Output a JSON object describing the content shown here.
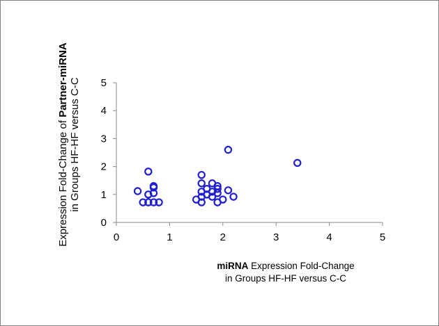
{
  "chart_data": {
    "type": "scatter",
    "xlabel": {
      "line1_bold": "miRNA",
      "line1_rest": " Expression Fold-Change",
      "line2": "in Groups HF-HF versus C-C"
    },
    "ylabel": {
      "line1_plain": "Expression Fold-Change of ",
      "line1_bold": "Partner-miRNA",
      "line2": "in Groups HF-HF versus C-C"
    },
    "xlim": [
      0,
      5
    ],
    "ylim": [
      0,
      5
    ],
    "x_ticks": [
      "0",
      "1",
      "2",
      "3",
      "4",
      "5"
    ],
    "y_ticks": [
      "0",
      "1",
      "2",
      "3",
      "4",
      "5"
    ],
    "grid": false,
    "marker_color": "#1f1fd0",
    "points": [
      {
        "x": 0.4,
        "y": 1.12
      },
      {
        "x": 0.5,
        "y": 0.72
      },
      {
        "x": 0.6,
        "y": 1.82
      },
      {
        "x": 0.6,
        "y": 1.0
      },
      {
        "x": 0.6,
        "y": 0.72
      },
      {
        "x": 0.7,
        "y": 1.3
      },
      {
        "x": 0.7,
        "y": 1.25
      },
      {
        "x": 0.7,
        "y": 1.05
      },
      {
        "x": 0.7,
        "y": 0.72
      },
      {
        "x": 0.8,
        "y": 0.72
      },
      {
        "x": 1.5,
        "y": 0.82
      },
      {
        "x": 1.6,
        "y": 1.7
      },
      {
        "x": 1.6,
        "y": 1.4
      },
      {
        "x": 1.6,
        "y": 1.1
      },
      {
        "x": 1.6,
        "y": 0.92
      },
      {
        "x": 1.6,
        "y": 0.72
      },
      {
        "x": 1.7,
        "y": 1.2
      },
      {
        "x": 1.7,
        "y": 1.0
      },
      {
        "x": 1.8,
        "y": 1.4
      },
      {
        "x": 1.8,
        "y": 1.1
      },
      {
        "x": 1.8,
        "y": 0.92
      },
      {
        "x": 1.9,
        "y": 1.3
      },
      {
        "x": 1.9,
        "y": 1.2
      },
      {
        "x": 1.9,
        "y": 1.05
      },
      {
        "x": 1.9,
        "y": 0.72
      },
      {
        "x": 2.0,
        "y": 0.82
      },
      {
        "x": 2.1,
        "y": 2.6
      },
      {
        "x": 2.1,
        "y": 1.15
      },
      {
        "x": 2.2,
        "y": 0.92
      },
      {
        "x": 3.4,
        "y": 2.13
      }
    ]
  }
}
